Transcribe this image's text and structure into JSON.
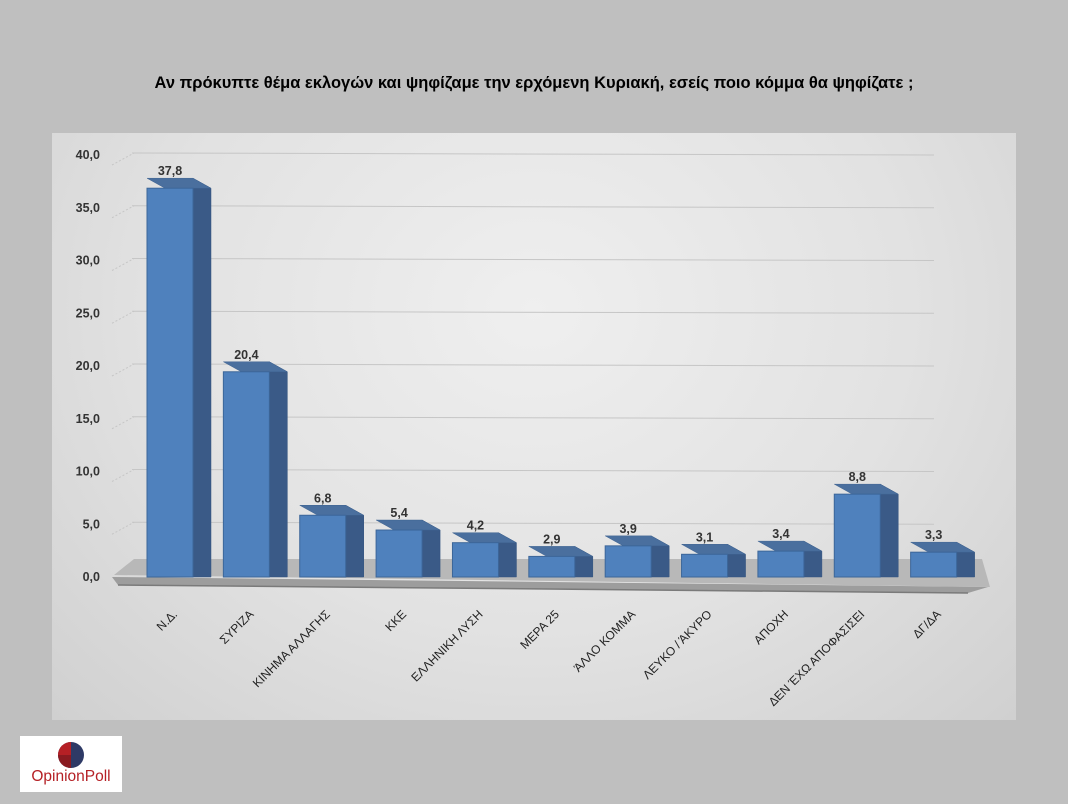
{
  "title": "Αν πρόκυπτε θέμα εκλογών και ψηφίζαμε την ερχόμενη Κυριακή, εσείς ποιο κόμμα θα ψηφίζατε ;",
  "logo": {
    "text": "OpinionPoll",
    "colors": {
      "red": "#b52025",
      "navy": "#2e3a66"
    }
  },
  "chart_data": {
    "type": "bar",
    "categories": [
      "Ν.Δ.",
      "ΣΥΡΙΖΑ",
      "ΚΙΝΗΜΑ ΑΛΛΑΓΗΣ",
      "ΚΚΕ",
      "ΕΛΛΗΝΙΚΗ ΛΥΣΗ",
      "ΜΕΡΑ 25",
      "ΆΛΛΟ ΚΟΜΜΑ",
      "ΛΕΥΚΟ / ΆΚΥΡΟ",
      "ΑΠΟΧΗ",
      "ΔΕΝ ΈΧΩ ΑΠΟΦΑΣΙΣΕΙ",
      "ΔΓ/ΔΑ"
    ],
    "values": [
      37.8,
      20.4,
      6.8,
      5.4,
      4.2,
      2.9,
      3.9,
      3.1,
      3.4,
      8.8,
      3.3
    ],
    "value_labels": [
      "37,8",
      "20,4",
      "6,8",
      "5,4",
      "4,2",
      "2,9",
      "3,9",
      "3,1",
      "3,4",
      "8,8",
      "3,3"
    ],
    "y_ticks": [
      "0,0",
      "5,0",
      "10,0",
      "15,0",
      "20,0",
      "25,0",
      "30,0",
      "35,0",
      "40,0"
    ],
    "ylim": [
      0,
      40
    ],
    "grid": true,
    "legend": "none",
    "style": "3d-column",
    "bar_color": "#4f81bd"
  }
}
